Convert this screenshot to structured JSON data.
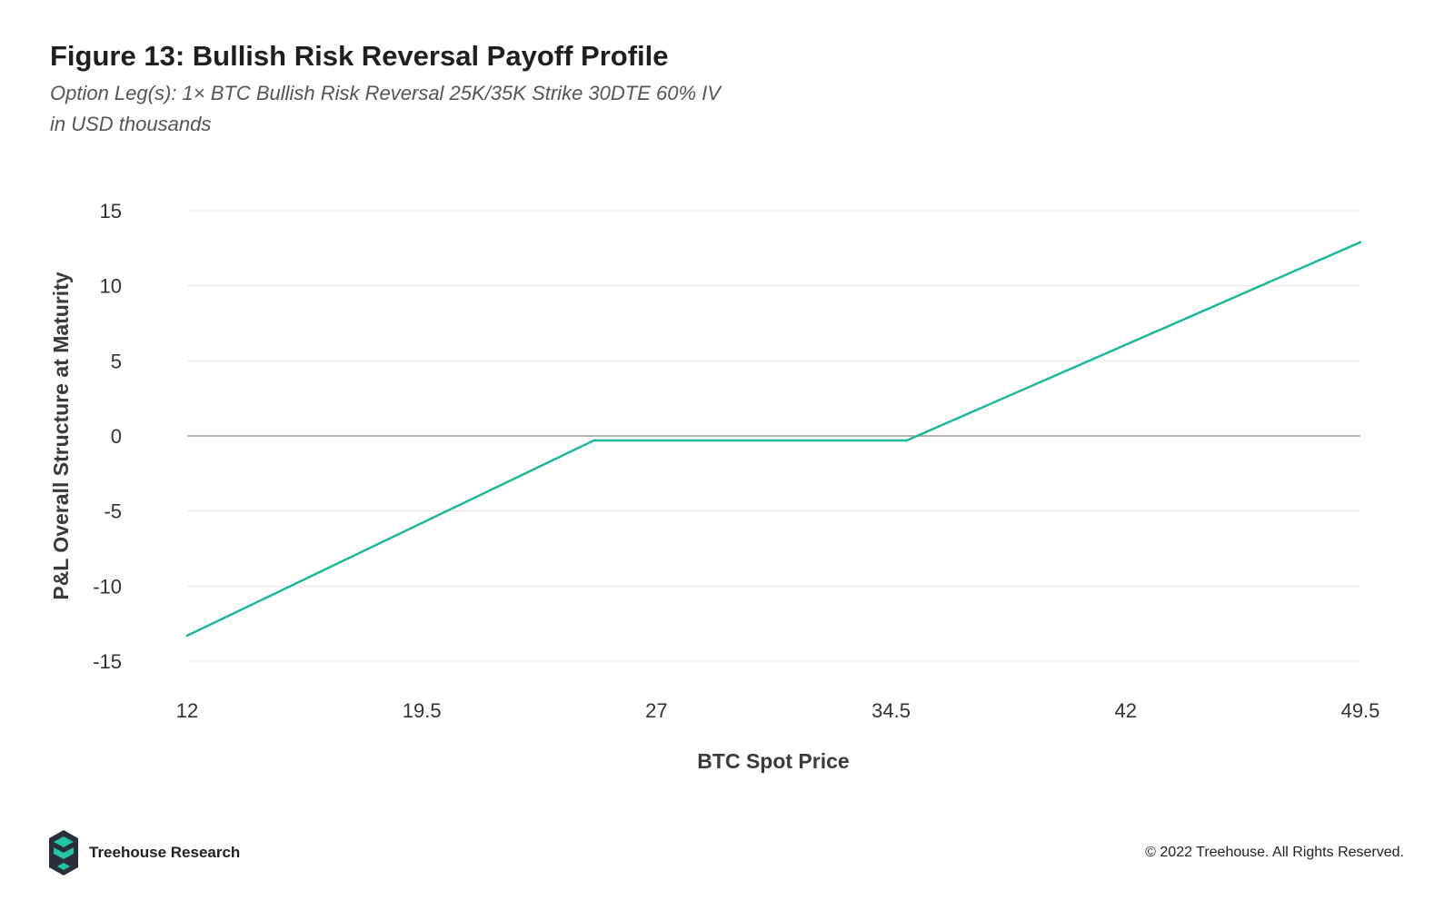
{
  "header": {
    "title": "Figure 13: Bullish Risk Reversal Payoff Profile",
    "subtitle_line1": "Option Leg(s): 1× BTC Bullish Risk Reversal 25K/35K Strike 30DTE 60% IV",
    "subtitle_line2": "in USD thousands"
  },
  "footer": {
    "brand": "Treehouse Research",
    "copyright": "© 2022 Treehouse. All Rights Reserved.",
    "logo_icon": "treehouse-logo-icon"
  },
  "colors": {
    "line": "#1bb99a",
    "zero_line": "#9a9a9a",
    "grid": "#e6e6e6",
    "logo_dark": "#2a2d3a",
    "logo_teal": "#24c4a6"
  },
  "chart_data": {
    "type": "line",
    "title": "Figure 13: Bullish Risk Reversal Payoff Profile",
    "xlabel": "BTC Spot Price",
    "ylabel": "P&L Overall Structure at Maturity",
    "xlim": [
      12,
      49.5
    ],
    "ylim": [
      -15,
      15
    ],
    "x_ticks": [
      "12",
      "19.5",
      "27",
      "34.5",
      "42",
      "49.5"
    ],
    "x_tick_values": [
      12,
      19.5,
      27,
      34.5,
      42,
      49.5
    ],
    "y_ticks": [
      "15",
      "10",
      "5",
      "0",
      "-5",
      "-10",
      "-15"
    ],
    "y_tick_values": [
      15,
      10,
      5,
      0,
      -5,
      -10,
      -15
    ],
    "grid": true,
    "legend": "none",
    "series": [
      {
        "values_x": [
          12,
          25,
          35,
          49.5
        ],
        "values_y": [
          -13.3,
          -0.3,
          -0.3,
          12.9
        ]
      }
    ]
  }
}
